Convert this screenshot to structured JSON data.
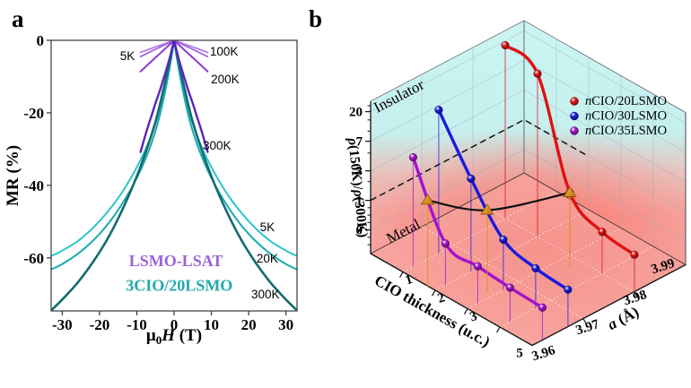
{
  "figure": {
    "panel_a_letter": "a",
    "panel_b_letter": "b"
  },
  "chart_data": [
    {
      "id": "panel_a",
      "type": "line",
      "xlabel": {
        "mu": "μ",
        "sub": "0",
        "symbol": "H",
        "unit": " (T)"
      },
      "ylabel": "MR (%)",
      "xlim": [
        -33.5,
        33.5
      ],
      "ylim": [
        -75,
        0
      ],
      "x_tick_values": [
        -30,
        -20,
        -10,
        0,
        10,
        20,
        30
      ],
      "x_tick_labels": [
        "-30",
        "-20",
        "-10",
        "0",
        "10",
        "20",
        "30"
      ],
      "y_tick_values": [
        0,
        -20,
        -40,
        -60
      ],
      "y_tick_labels": [
        "0",
        "-20",
        "-40",
        "-60"
      ],
      "grid": false,
      "series": [
        {
          "sample": "3CIO/20LSMO",
          "temperature": "5K",
          "color": "#2cc6ca",
          "width": 2,
          "points": [
            [
              0,
              0
            ],
            [
              0.5,
              -3
            ],
            [
              1,
              -6
            ],
            [
              2,
              -11
            ],
            [
              3,
              -15.5
            ],
            [
              4,
              -19.5
            ],
            [
              5,
              -23
            ],
            [
              7,
              -28.5
            ],
            [
              10,
              -35
            ],
            [
              14,
              -42
            ],
            [
              18,
              -47.5
            ],
            [
              22,
              -52
            ],
            [
              26,
              -55.5
            ],
            [
              30,
              -58
            ],
            [
              33,
              -59.5
            ]
          ]
        },
        {
          "sample": "3CIO/20LSMO",
          "temperature": "20K",
          "color": "#18abb1",
          "width": 2,
          "points": [
            [
              0,
              0
            ],
            [
              0.5,
              -3.3
            ],
            [
              1,
              -6.5
            ],
            [
              2,
              -12
            ],
            [
              3,
              -17
            ],
            [
              4,
              -21.3
            ],
            [
              5,
              -25
            ],
            [
              7,
              -31
            ],
            [
              10,
              -38
            ],
            [
              14,
              -45.2
            ],
            [
              18,
              -51
            ],
            [
              22,
              -55.5
            ],
            [
              26,
              -59
            ],
            [
              30,
              -61.7
            ],
            [
              33,
              -63.2
            ]
          ]
        },
        {
          "sample": "3CIO/20LSMO",
          "temperature": "300K",
          "color": "#156b70",
          "width": 2.6,
          "points": [
            [
              0,
              0
            ],
            [
              0.5,
              -2.5
            ],
            [
              1,
              -5
            ],
            [
              2,
              -9.7
            ],
            [
              3,
              -14.2
            ],
            [
              4,
              -18.5
            ],
            [
              5,
              -22.5
            ],
            [
              7,
              -29
            ],
            [
              10,
              -37.5
            ],
            [
              14,
              -47
            ],
            [
              18,
              -55
            ],
            [
              22,
              -61.5
            ],
            [
              26,
              -67
            ],
            [
              30,
              -71.5
            ],
            [
              33,
              -74.5
            ]
          ]
        },
        {
          "sample": "LSMO-LSAT",
          "temperature": "5K",
          "color": "#b27ee6",
          "width": 1.8,
          "points": [
            [
              0,
              0
            ],
            [
              3,
              -1.1
            ],
            [
              6,
              -2.2
            ],
            [
              9,
              -3.3
            ]
          ]
        },
        {
          "sample": "LSMO-LSAT",
          "temperature": "100K",
          "color": "#a366dd",
          "width": 1.8,
          "points": [
            [
              0,
              0
            ],
            [
              3,
              -1.5
            ],
            [
              6,
              -3.0
            ],
            [
              9,
              -4.5
            ]
          ]
        },
        {
          "sample": "LSMO-LSAT",
          "temperature": "200K",
          "color": "#8a3ad2",
          "width": 2,
          "points": [
            [
              0,
              0
            ],
            [
              3,
              -2.9
            ],
            [
              6,
              -5.7
            ],
            [
              9,
              -8.6
            ]
          ]
        },
        {
          "sample": "LSMO-LSAT",
          "temperature": "300K",
          "color": "#5a23c0",
          "width": 2.4,
          "points": [
            [
              0,
              0
            ],
            [
              1,
              -4.2
            ],
            [
              2,
              -7.8
            ],
            [
              3,
              -11.2
            ],
            [
              4,
              -14.4
            ],
            [
              5,
              -17.4
            ],
            [
              6,
              -20.6
            ],
            [
              7,
              -23.8
            ],
            [
              8,
              -27.2
            ],
            [
              9,
              -30.8
            ]
          ]
        }
      ],
      "curve_labels": [
        {
          "text": "5K",
          "x": -12.5,
          "y": -4.2
        },
        {
          "text": "100K",
          "x": 13.4,
          "y": -3.0
        },
        {
          "text": "200K",
          "x": 13.7,
          "y": -10.6
        },
        {
          "text": "300K",
          "x": 11.5,
          "y": -28.9
        },
        {
          "text": "5K",
          "x": 25,
          "y": -51.4
        },
        {
          "text": "20K",
          "x": 25,
          "y": -60.1
        },
        {
          "text": "300K",
          "x": 24.5,
          "y": -69.9
        }
      ],
      "sample_labels": [
        {
          "text": "LSMO-LSAT",
          "color": "#9a63d8",
          "x": 0.5,
          "y": -60.8
        },
        {
          "text": "3CIO/20LSMO",
          "color": "#21a9ae",
          "x": 1.4,
          "y": -67.6
        }
      ]
    },
    {
      "id": "panel_b",
      "type": "line3d",
      "x_axis": {
        "title": "CIO thickness (u.c.)",
        "ticks": [
          "1",
          "2",
          "3"
        ],
        "tick_values": [
          1,
          2,
          3
        ],
        "corner_label": "5",
        "range": [
          0,
          5
        ]
      },
      "y_axis": {
        "title_symbol": "a",
        "title_unit": " (Å)",
        "ticks": [
          "3.96",
          "3.97",
          "3.98",
          "3.99"
        ],
        "tick_values": [
          3.96,
          3.97,
          3.98,
          3.99
        ]
      },
      "z_axis": {
        "title_rho": "ρ",
        "title": "ρ(150K)/ρ(300K)",
        "tick_labels": [
          "0",
          "1",
          "3",
          "7",
          "20"
        ],
        "tick_values": [
          0,
          1,
          3,
          7,
          20
        ]
      },
      "regions": [
        {
          "text": "Insulator"
        },
        {
          "text": "Metal"
        }
      ],
      "boundary_ratio": 1.0,
      "series": [
        {
          "prefix": "n",
          "label": "CIO/20LSMO",
          "color": "#e01111",
          "a": 3.98,
          "thickness": [
            1,
            2,
            3,
            4,
            5
          ],
          "ratio": [
            60,
            42,
            1.4,
            0.6,
            0.45
          ],
          "transition_thickness": 3.0
        },
        {
          "prefix": "n",
          "label": "CIO/30LSMO",
          "color": "#1a1ae0",
          "a": 3.967,
          "thickness": [
            1,
            2,
            3,
            4,
            5
          ],
          "ratio": [
            21,
            4,
            0.9,
            0.55,
            0.45
          ],
          "transition_thickness": 2.5
        },
        {
          "prefix": "n",
          "label": "CIO/35LSMO",
          "color": "#a312cf",
          "a": 3.962,
          "thickness": [
            1,
            2,
            3,
            4,
            5
          ],
          "ratio": [
            6.4,
            0.6,
            0.45,
            0.35,
            0.3
          ],
          "transition_thickness": 1.45
        }
      ],
      "legend": [
        {
          "prefix": "n",
          "label": "CIO/20LSMO",
          "color": "#e01111"
        },
        {
          "prefix": "n",
          "label": "CIO/30LSMO",
          "color": "#1a1ae0"
        },
        {
          "prefix": "n",
          "label": "CIO/35LSMO",
          "color": "#a312cf"
        }
      ],
      "transition_marker_color": "#e0941c",
      "colors": {
        "wall_top": "#cbf5f3",
        "wall_bottom": "#f7a19b",
        "floor": "#f7a4a0",
        "glow": "#ff4538"
      }
    }
  ]
}
